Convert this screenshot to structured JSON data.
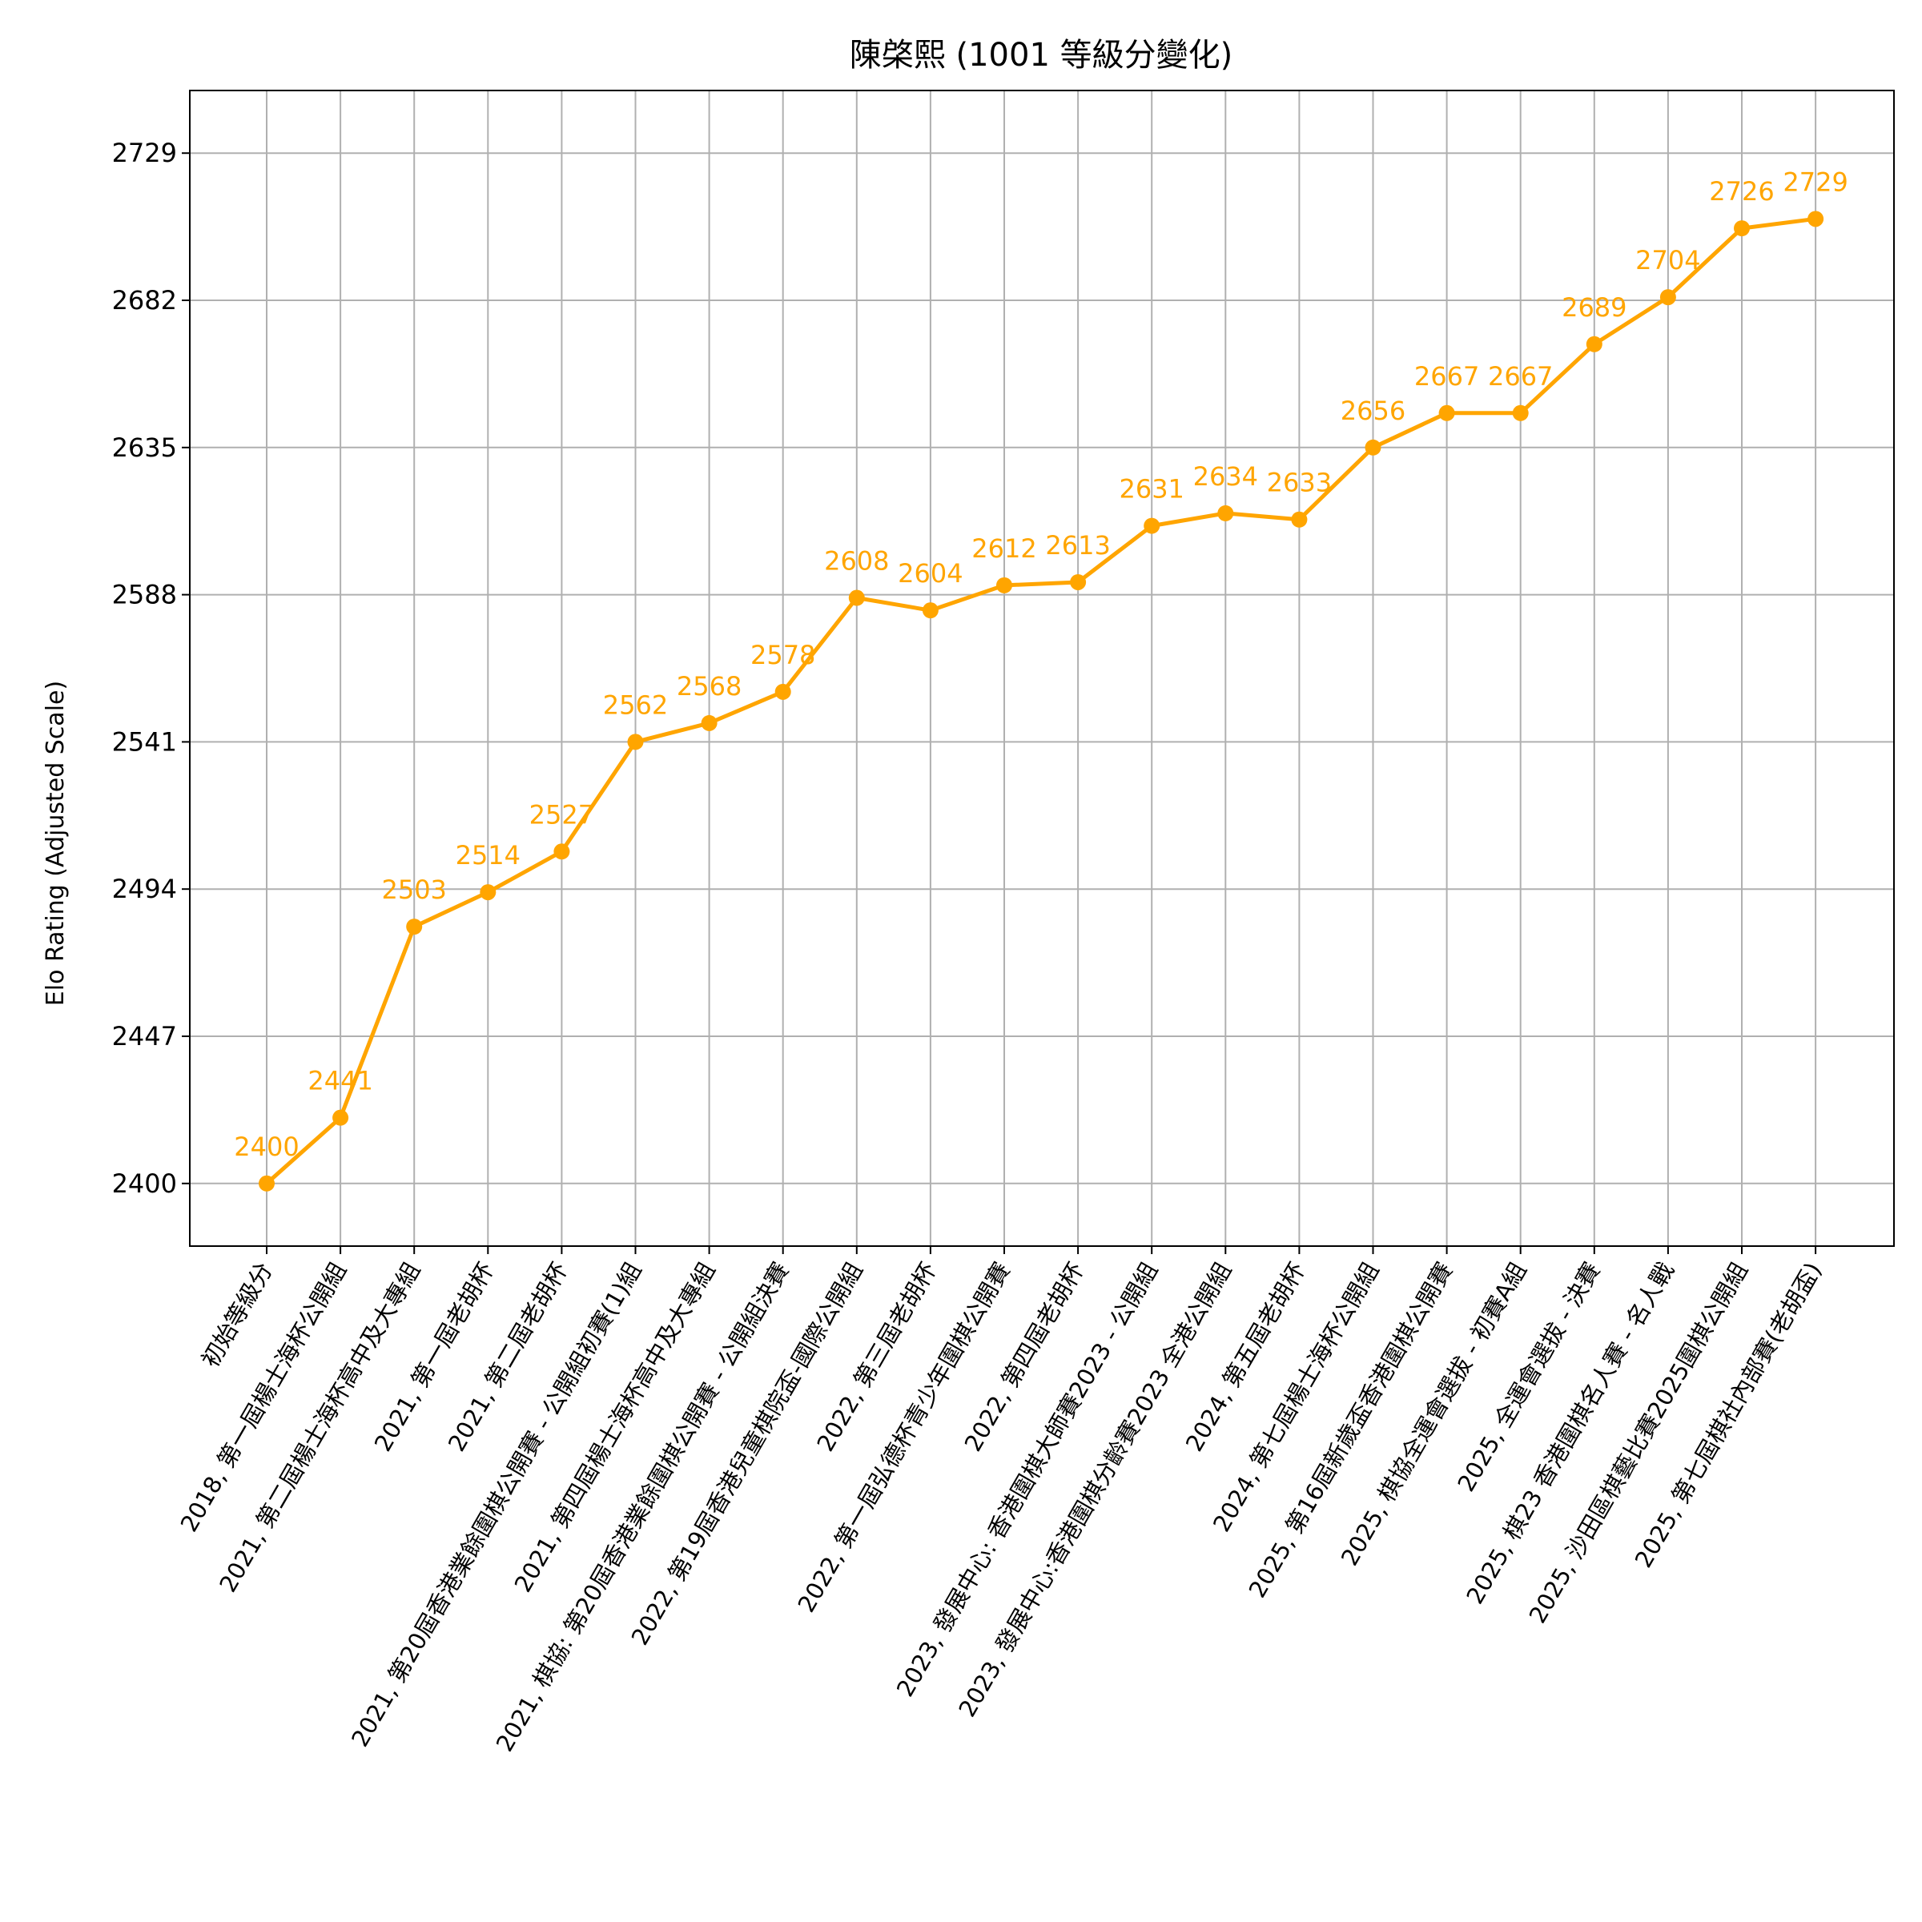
{
  "chart_data": {
    "type": "line",
    "title": "陳棨熙 (1001 等級分變化)",
    "xlabel": "",
    "ylabel": "Elo Rating (Adjusted Scale)",
    "ylim": [
      2380,
      2749
    ],
    "yticks": [
      2400,
      2447,
      2494,
      2541,
      2588,
      2635,
      2682,
      2729
    ],
    "grid": true,
    "color": "#FFA500",
    "categories": [
      "初始等級分",
      "2018, 第一屆楊士海杯公開組",
      "2021, 第二屆楊士海杯高中及大專組",
      "2021, 第一屆老胡杯",
      "2021, 第二屆老胡杯",
      "2021, 第20屆香港業餘圍棋公開賽 - 公開組初賽(1)組",
      "2021, 第四屆楊士海杯高中及大專組",
      "2021, 棋協: 第20屆香港業餘圍棋公開賽 - 公開組決賽",
      "2022, 第19屆香港兒童棋院盃-國際公開組",
      "2022, 第三屆老胡杯",
      "2022, 第一屆弘德杯青少年圍棋公開賽",
      "2022, 第四屆老胡杯",
      "2023, 發展中心: 香港圍棋大師賽2023 - 公開組",
      "2023, 發展中心:香港圍棋分齡賽2023 全港公開組",
      "2024, 第五屆老胡杯",
      "2024, 第七屆楊士海杯公開組",
      "2025, 第16屆新歲盃香港圍棋公開賽",
      "2025, 棋協全運會選拔 - 初賽A組",
      "2025, 全運會選拔 - 決賽",
      "2025, 棋23  香港圍棋名人賽 - 名人戰",
      "2025, 沙田區棋藝比賽2025圍棋公開組",
      "2025, 第七屆棋社內部賽(老胡盃)"
    ],
    "values": [
      2400,
      2441,
      2503,
      2514,
      2527,
      2562,
      2568,
      2578,
      2608,
      2604,
      2612,
      2613,
      2631,
      2634,
      2633,
      2656,
      2667,
      2667,
      2689,
      2704,
      2726,
      2729
    ],
    "plot_values": [
      2400,
      2421,
      2482,
      2493,
      2506,
      2541,
      2547,
      2557,
      2587,
      2583,
      2591,
      2592,
      2610,
      2614,
      2612,
      2635,
      2646,
      2646,
      2668,
      2683,
      2705,
      2708
    ]
  }
}
